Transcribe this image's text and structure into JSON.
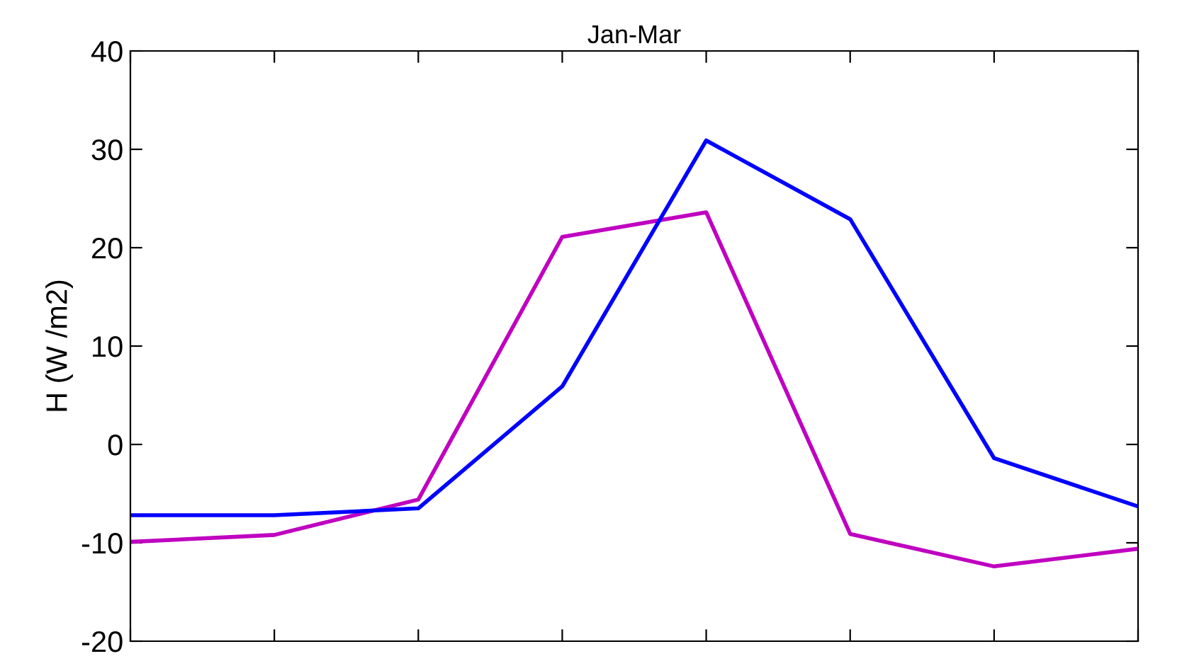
{
  "chart_data": {
    "type": "line",
    "title": "Jan-Mar",
    "ylabel": "H (W /m2)",
    "categories": [
      null,
      null,
      null,
      null,
      null,
      null,
      null,
      null
    ],
    "series": [
      {
        "color": "#bf00c0",
        "values": [
          -9.9,
          -9.2,
          -5.6,
          21.1,
          23.6,
          -9.1,
          -12.4,
          -10.6
        ]
      },
      {
        "color": "#0000ff",
        "values": [
          -7.2,
          -7.2,
          -6.5,
          5.9,
          30.9,
          22.9,
          -1.4,
          -6.3
        ]
      }
    ],
    "ylim": [
      -20,
      40
    ],
    "yticks": [
      -20,
      -10,
      0,
      10,
      20,
      30,
      40
    ],
    "grid": false,
    "legend": false,
    "marker": "none",
    "line_style": "solid",
    "tick_labels": "y"
  }
}
